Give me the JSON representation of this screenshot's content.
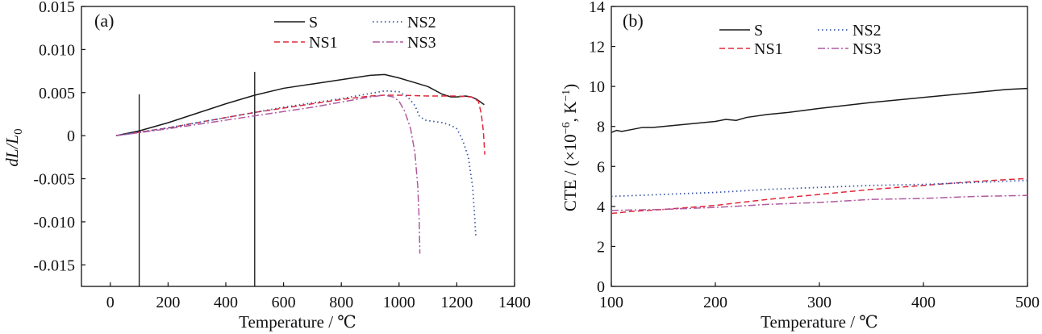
{
  "colors": {
    "S": "#1a1a1a",
    "NS1": "#e0283a",
    "NS2": "#3c5aa6",
    "NS3": "#b05aa0",
    "axis": "#111111"
  },
  "chart_data": [
    {
      "panel_label": "(a)",
      "type": "line",
      "xlabel": "Temperature / ℃",
      "ylabel_main": "dL/L",
      "ylabel_sub": "0",
      "xlim": [
        -100,
        1400
      ],
      "ylim": [
        -0.0175,
        0.015
      ],
      "xticks": [
        "0",
        "200",
        "400",
        "600",
        "800",
        "1000",
        "1200",
        "1400"
      ],
      "xtick_values": [
        0,
        200,
        400,
        600,
        800,
        1000,
        1200,
        1400
      ],
      "yticks": [
        "-0.015",
        "-0.010",
        "-0.005",
        "0",
        "0.005",
        "0.010",
        "0.015"
      ],
      "ytick_values": [
        -0.015,
        -0.01,
        -0.005,
        0,
        0.005,
        0.01,
        0.015
      ],
      "legend_position": "top-right",
      "reference_lines": [
        {
          "x": 100,
          "y_from": -0.0175,
          "y_to": 0.0048
        },
        {
          "x": 500,
          "y_from": -0.0175,
          "y_to": 0.0074
        }
      ],
      "series": [
        {
          "name": "S",
          "style": "solid",
          "color_key": "S",
          "points": [
            [
              20,
              0
            ],
            [
              100,
              0.00055
            ],
            [
              200,
              0.0015
            ],
            [
              300,
              0.0026
            ],
            [
              400,
              0.0037
            ],
            [
              500,
              0.0047
            ],
            [
              600,
              0.0055
            ],
            [
              700,
              0.006
            ],
            [
              800,
              0.0065
            ],
            [
              900,
              0.007
            ],
            [
              950,
              0.0071
            ],
            [
              1000,
              0.0067
            ],
            [
              1050,
              0.0062
            ],
            [
              1100,
              0.0057
            ],
            [
              1150,
              0.0048
            ],
            [
              1180,
              0.0045
            ],
            [
              1200,
              0.0045
            ],
            [
              1230,
              0.0046
            ],
            [
              1250,
              0.0045
            ],
            [
              1270,
              0.0042
            ],
            [
              1295,
              0.0036
            ]
          ]
        },
        {
          "name": "NS1",
          "style": "dashed",
          "color_key": "NS1",
          "points": [
            [
              20,
              0
            ],
            [
              100,
              0.0004
            ],
            [
              200,
              0.0009
            ],
            [
              300,
              0.0015
            ],
            [
              400,
              0.0021
            ],
            [
              500,
              0.0027
            ],
            [
              600,
              0.0032
            ],
            [
              700,
              0.0037
            ],
            [
              800,
              0.0042
            ],
            [
              900,
              0.0046
            ],
            [
              950,
              0.0047
            ],
            [
              1000,
              0.0047
            ],
            [
              1100,
              0.0046
            ],
            [
              1200,
              0.0046
            ],
            [
              1250,
              0.0045
            ],
            [
              1275,
              0.004
            ],
            [
              1285,
              0.0025
            ],
            [
              1292,
              0.0005
            ],
            [
              1297,
              -0.0022
            ]
          ]
        },
        {
          "name": "NS2",
          "style": "dotted",
          "color_key": "NS2",
          "points": [
            [
              20,
              0
            ],
            [
              100,
              0.0004
            ],
            [
              200,
              0.0009
            ],
            [
              300,
              0.0015
            ],
            [
              400,
              0.0021
            ],
            [
              500,
              0.0027
            ],
            [
              600,
              0.0033
            ],
            [
              700,
              0.0038
            ],
            [
              800,
              0.0043
            ],
            [
              900,
              0.0049
            ],
            [
              950,
              0.0052
            ],
            [
              1000,
              0.0051
            ],
            [
              1030,
              0.0045
            ],
            [
              1055,
              0.0035
            ],
            [
              1070,
              0.0023
            ],
            [
              1090,
              0.0018
            ],
            [
              1150,
              0.0015
            ],
            [
              1180,
              0.0012
            ],
            [
              1200,
              0.0008
            ],
            [
              1220,
              -0.0005
            ],
            [
              1240,
              -0.0025
            ],
            [
              1255,
              -0.006
            ],
            [
              1262,
              -0.0095
            ],
            [
              1266,
              -0.0118
            ]
          ]
        },
        {
          "name": "NS3",
          "style": "dashdot",
          "color_key": "NS3",
          "points": [
            [
              20,
              0
            ],
            [
              100,
              0.00035
            ],
            [
              200,
              0.0008
            ],
            [
              300,
              0.0013
            ],
            [
              400,
              0.0018
            ],
            [
              500,
              0.0023
            ],
            [
              600,
              0.0028
            ],
            [
              700,
              0.0033
            ],
            [
              800,
              0.0039
            ],
            [
              900,
              0.0045
            ],
            [
              950,
              0.0047
            ],
            [
              980,
              0.0045
            ],
            [
              1000,
              0.004
            ],
            [
              1020,
              0.0028
            ],
            [
              1040,
              0.0008
            ],
            [
              1055,
              -0.002
            ],
            [
              1065,
              -0.006
            ],
            [
              1070,
              -0.01
            ],
            [
              1072,
              -0.0137
            ]
          ]
        }
      ]
    },
    {
      "panel_label": "(b)",
      "type": "line",
      "xlabel": "Temperature / ℃",
      "ylabel_main": "CTE / (×10",
      "ylabel_sup": "−6",
      "ylabel_mid": ", K",
      "ylabel_sup2": "−1",
      "ylabel_end": ")",
      "xlim": [
        100,
        500
      ],
      "ylim": [
        0,
        14
      ],
      "xticks": [
        "100",
        "200",
        "300",
        "400",
        "500"
      ],
      "xtick_values": [
        100,
        200,
        300,
        400,
        500
      ],
      "yticks": [
        "0",
        "2",
        "4",
        "6",
        "8",
        "10",
        "12",
        "14"
      ],
      "ytick_values": [
        0,
        2,
        4,
        6,
        8,
        10,
        12,
        14
      ],
      "legend_position": "top-center",
      "series": [
        {
          "name": "S",
          "style": "solid",
          "color_key": "S",
          "points": [
            [
              100,
              7.7
            ],
            [
              105,
              7.8
            ],
            [
              110,
              7.75
            ],
            [
              120,
              7.85
            ],
            [
              130,
              7.95
            ],
            [
              140,
              7.95
            ],
            [
              150,
              8.0
            ],
            [
              160,
              8.05
            ],
            [
              170,
              8.1
            ],
            [
              180,
              8.15
            ],
            [
              190,
              8.2
            ],
            [
              200,
              8.25
            ],
            [
              210,
              8.35
            ],
            [
              220,
              8.3
            ],
            [
              230,
              8.45
            ],
            [
              250,
              8.6
            ],
            [
              270,
              8.7
            ],
            [
              300,
              8.9
            ],
            [
              350,
              9.2
            ],
            [
              400,
              9.45
            ],
            [
              450,
              9.7
            ],
            [
              480,
              9.85
            ],
            [
              500,
              9.9
            ]
          ]
        },
        {
          "name": "NS1",
          "style": "dashed",
          "color_key": "NS1",
          "points": [
            [
              100,
              3.65
            ],
            [
              120,
              3.75
            ],
            [
              150,
              3.85
            ],
            [
              200,
              4.05
            ],
            [
              250,
              4.35
            ],
            [
              300,
              4.6
            ],
            [
              350,
              4.85
            ],
            [
              400,
              5.05
            ],
            [
              450,
              5.25
            ],
            [
              500,
              5.4
            ]
          ]
        },
        {
          "name": "NS2",
          "style": "dotted",
          "color_key": "NS2",
          "points": [
            [
              100,
              4.5
            ],
            [
              150,
              4.6
            ],
            [
              200,
              4.7
            ],
            [
              250,
              4.85
            ],
            [
              300,
              4.95
            ],
            [
              350,
              5.05
            ],
            [
              400,
              5.1
            ],
            [
              450,
              5.2
            ],
            [
              500,
              5.3
            ]
          ]
        },
        {
          "name": "NS3",
          "style": "dashdot",
          "color_key": "NS3",
          "points": [
            [
              100,
              3.8
            ],
            [
              150,
              3.85
            ],
            [
              200,
              3.95
            ],
            [
              250,
              4.1
            ],
            [
              300,
              4.2
            ],
            [
              350,
              4.35
            ],
            [
              400,
              4.4
            ],
            [
              450,
              4.5
            ],
            [
              500,
              4.55
            ]
          ]
        }
      ]
    }
  ]
}
